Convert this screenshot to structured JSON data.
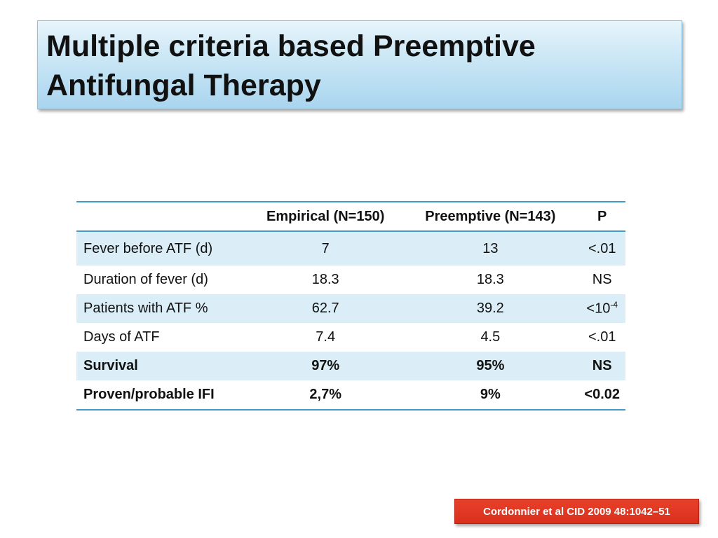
{
  "slide": {
    "title_line1": "Multiple criteria based Preemptive",
    "title_line2": "Antifungal Therapy"
  },
  "table": {
    "headers": [
      "",
      "Empirical (N=150)",
      "Preemptive (N=143)",
      "P"
    ],
    "rows": [
      {
        "label": "Fever before ATF (d)",
        "empirical": "7",
        "preemptive": "13",
        "p": "<.01"
      },
      {
        "label": "Duration of fever (d)",
        "empirical": "18.3",
        "preemptive": "18.3",
        "p": "NS"
      },
      {
        "label": "Patients with ATF %",
        "empirical": "62.7",
        "preemptive": "39.2",
        "p": "<10",
        "p_sup": "-4"
      },
      {
        "label": "Days of ATF",
        "empirical": "7.4",
        "preemptive": "4.5",
        "p": "<.01"
      },
      {
        "label": "Survival",
        "empirical": "97%",
        "preemptive": "95%",
        "p": "NS"
      },
      {
        "label": "Proven/probable IFI",
        "empirical": "2,7%",
        "preemptive": "9%",
        "p": "<0.02"
      }
    ]
  },
  "citation": "Cordonnier et al CID 2009 48:1042–51",
  "colors": {
    "accent_line": "#3d9cc9",
    "row_shade": "#dbeef7",
    "citation_bg": "#d8301d",
    "title_bg": "#c9e6f5"
  }
}
